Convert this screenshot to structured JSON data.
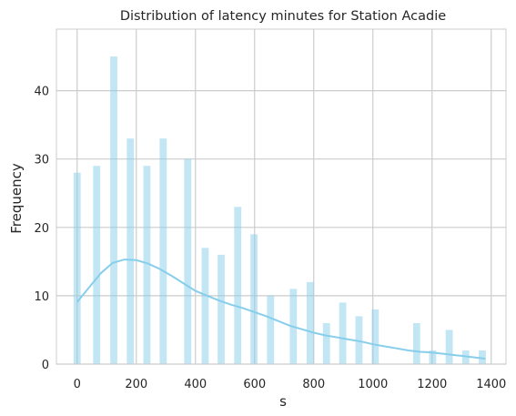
{
  "chart_data": {
    "type": "histogram",
    "title": "Distribution of latency minutes for Station Acadie",
    "xlabel": "s",
    "ylabel": "Frequency",
    "xlim": [
      -70,
      1450
    ],
    "ylim": [
      0,
      49
    ],
    "xticks": [
      0,
      200,
      400,
      600,
      800,
      1000,
      1200,
      1400
    ],
    "yticks": [
      0,
      10,
      20,
      30,
      40
    ],
    "grid": true,
    "colors": {
      "bar": "#87CEEB",
      "kde": "#87CEEB",
      "grid": "#cccccc"
    },
    "bars": [
      {
        "x": 0,
        "value": 28
      },
      {
        "x": 66,
        "value": 29
      },
      {
        "x": 124,
        "value": 45
      },
      {
        "x": 180,
        "value": 33
      },
      {
        "x": 236,
        "value": 29
      },
      {
        "x": 291,
        "value": 33
      },
      {
        "x": 374,
        "value": 30
      },
      {
        "x": 433,
        "value": 17
      },
      {
        "x": 487,
        "value": 16
      },
      {
        "x": 543,
        "value": 23
      },
      {
        "x": 598,
        "value": 19
      },
      {
        "x": 654,
        "value": 10
      },
      {
        "x": 731,
        "value": 11
      },
      {
        "x": 788,
        "value": 12
      },
      {
        "x": 843,
        "value": 6
      },
      {
        "x": 898,
        "value": 9
      },
      {
        "x": 953,
        "value": 7
      },
      {
        "x": 1008,
        "value": 8
      },
      {
        "x": 1148,
        "value": 6
      },
      {
        "x": 1202,
        "value": 2
      },
      {
        "x": 1258,
        "value": 5
      },
      {
        "x": 1314,
        "value": 2
      },
      {
        "x": 1370,
        "value": 2
      }
    ],
    "bar_width": 24,
    "kde": {
      "x": [
        0,
        40,
        80,
        120,
        160,
        200,
        240,
        280,
        320,
        360,
        400,
        440,
        480,
        520,
        560,
        600,
        640,
        680,
        720,
        760,
        800,
        840,
        880,
        920,
        960,
        1000,
        1040,
        1080,
        1120,
        1160,
        1200,
        1240,
        1280,
        1320,
        1360,
        1380
      ],
      "y": [
        9.1,
        11.2,
        13.3,
        14.8,
        15.3,
        15.2,
        14.7,
        13.9,
        12.9,
        11.8,
        10.7,
        10.0,
        9.3,
        8.7,
        8.2,
        7.6,
        7.0,
        6.3,
        5.6,
        5.1,
        4.6,
        4.2,
        3.9,
        3.6,
        3.3,
        2.9,
        2.6,
        2.3,
        2.0,
        1.8,
        1.7,
        1.5,
        1.3,
        1.1,
        0.9,
        0.8
      ]
    }
  }
}
